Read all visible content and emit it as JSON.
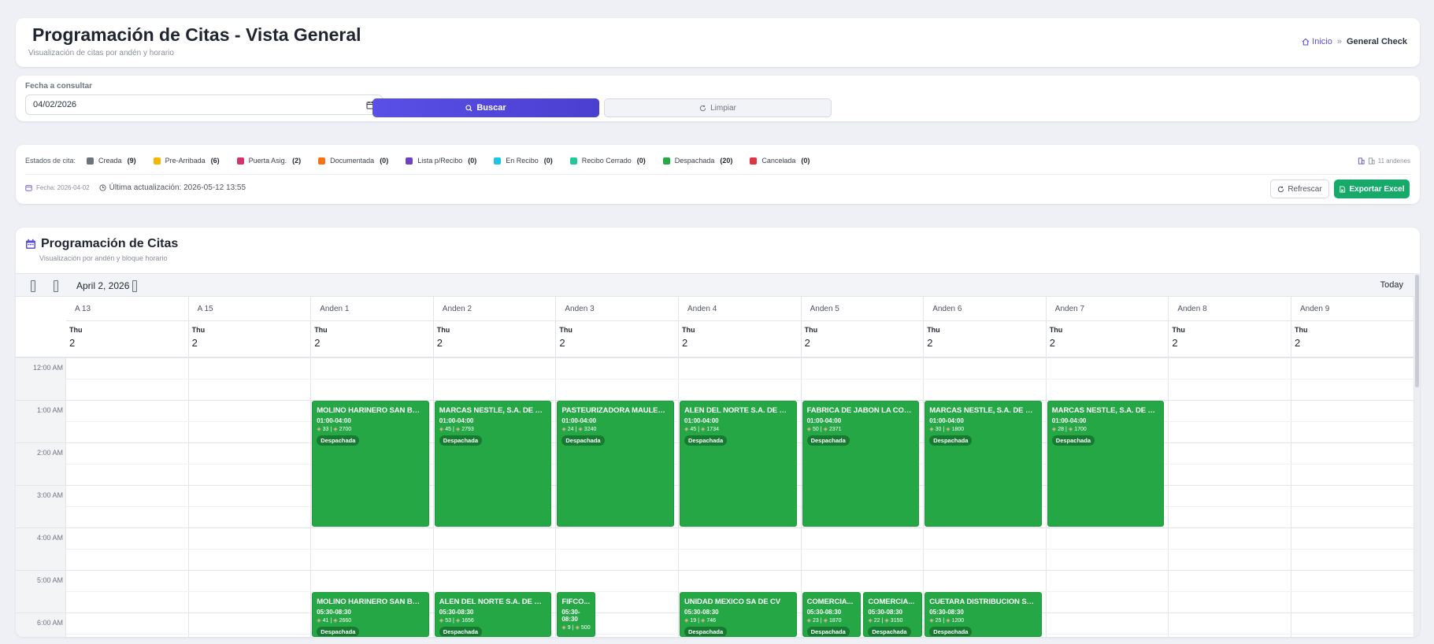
{
  "header": {
    "title": "Programación de Citas - Vista General",
    "subtitle": "Visualización de citas por andén y horario",
    "breadcrumb_home": "Inicio",
    "breadcrumb_current": "General Check"
  },
  "search": {
    "label": "Fecha a consultar",
    "date_value": "04/02/2026",
    "search_label": "Buscar",
    "clear_label": "Limpiar"
  },
  "status": {
    "label": "Estados de cita:",
    "legend": [
      {
        "label": "Creada",
        "count": "(9)",
        "color": "#6b7280"
      },
      {
        "label": "Pre-Arribada",
        "count": "(6)",
        "color": "#f5b700"
      },
      {
        "label": "Puerta Asig.",
        "count": "(2)",
        "color": "#d6336c"
      },
      {
        "label": "Documentada",
        "count": "(0)",
        "color": "#f97316"
      },
      {
        "label": "Lista p/Recibo",
        "count": "(0)",
        "color": "#6f42c1"
      },
      {
        "label": "En Recibo",
        "count": "(0)",
        "color": "#22c3e6"
      },
      {
        "label": "Recibo Cerrado",
        "count": "(0)",
        "color": "#20c997"
      },
      {
        "label": "Despachada",
        "count": "(20)",
        "color": "#28a745"
      },
      {
        "label": "Cancelada",
        "count": "(0)",
        "color": "#dc3545"
      }
    ],
    "andenes": "11 andenes",
    "fecha": "Fecha: 2026-04-02",
    "ultima": "Última actualización: 2026-05-12 13:55",
    "refresh_label": "Refrescar",
    "export_label": "Exportar Excel"
  },
  "calendar": {
    "title": "Programación de Citas",
    "subtitle": "Visualización por andén y bloque horario",
    "date_label": "April 2, 2026",
    "today_label": "Today",
    "day_name": "Thu",
    "day_number": "2",
    "resources": [
      "A 13",
      "A 15",
      "Anden 1",
      "Anden 2",
      "Anden 3",
      "Anden 4",
      "Anden 5",
      "Anden 6",
      "Anden 7",
      "Anden 8",
      "Anden 9"
    ],
    "time_labels": [
      "12:00 AM",
      "1:00 AM",
      "2:00 AM",
      "3:00 AM",
      "4:00 AM",
      "5:00 AM",
      "6:00 AM"
    ],
    "events": [
      {
        "col": 2,
        "start": 1.0,
        "end": 4.0,
        "name": "MOLINO HARINERO SAN BLA...",
        "time": "01:00-04:00",
        "m1": "33",
        "m2": "2700",
        "status": "Despachada"
      },
      {
        "col": 3,
        "start": 1.0,
        "end": 4.0,
        "name": "MARCAS NESTLE, S.A. DE C.V.",
        "time": "01:00-04:00",
        "m1": "45",
        "m2": "2793",
        "status": "Despachada"
      },
      {
        "col": 4,
        "start": 1.0,
        "end": 4.0,
        "name": "PASTEURIZADORA MAULEC ...",
        "time": "01:00-04:00",
        "m1": "24",
        "m2": "3240",
        "status": "Despachada"
      },
      {
        "col": 5,
        "start": 1.0,
        "end": 4.0,
        "name": "ALEN DEL NORTE S.A. DE C.V.",
        "time": "01:00-04:00",
        "m1": "45",
        "m2": "1734",
        "status": "Despachada"
      },
      {
        "col": 6,
        "start": 1.0,
        "end": 4.0,
        "name": "FABRICA DE JABON LA COR...",
        "time": "01:00-04:00",
        "m1": "50",
        "m2": "2371",
        "status": "Despachada"
      },
      {
        "col": 7,
        "start": 1.0,
        "end": 4.0,
        "name": "MARCAS NESTLE, S.A. DE C.V.",
        "time": "01:00-04:00",
        "m1": "30",
        "m2": "1800",
        "status": "Despachada"
      },
      {
        "col": 8,
        "start": 1.0,
        "end": 4.0,
        "name": "MARCAS NESTLE, S.A. DE C.V.",
        "time": "01:00-04:00",
        "m1": "28",
        "m2": "1700",
        "status": "Despachada"
      },
      {
        "col": 2,
        "start": 5.5,
        "end": 8.5,
        "name": "MOLINO HARINERO SAN BLA...",
        "time": "05:30-08:30",
        "m1": "41",
        "m2": "2660",
        "status": "Despachada"
      },
      {
        "col": 3,
        "start": 5.5,
        "end": 8.5,
        "name": "ALEN DEL NORTE S.A. DE C.V.",
        "time": "05:30-08:30",
        "m1": "53",
        "m2": "1656",
        "status": "Despachada"
      },
      {
        "col": 4,
        "start": 5.5,
        "end": 8.5,
        "name": "FIFCO...",
        "time": "05:30-08:30",
        "m1": "9",
        "m2": "500",
        "status": "Despachada",
        "split": 0.33,
        "slot": 0
      },
      {
        "col": 5,
        "start": 5.5,
        "end": 8.5,
        "name": "UNIDAD MEXICO SA DE CV",
        "time": "05:30-08:30",
        "m1": "19",
        "m2": "746",
        "status": "Despachada"
      },
      {
        "col": 6,
        "start": 5.5,
        "end": 8.5,
        "name": "COMERCIA...",
        "time": "05:30-08:30",
        "m1": "23",
        "m2": "1870",
        "status": "Despachada",
        "split": 0.5,
        "slot": 0
      },
      {
        "col": 6,
        "start": 5.5,
        "end": 8.5,
        "name": "COMERCIA...",
        "time": "05:30-08:30",
        "m1": "22",
        "m2": "3150",
        "status": "Despachada",
        "split": 0.5,
        "slot": 1
      },
      {
        "col": 7,
        "start": 5.5,
        "end": 8.5,
        "name": "CUETARA DISTRIBUCION SA ...",
        "time": "05:30-08:30",
        "m1": "25",
        "m2": "1200",
        "status": "Despachada"
      }
    ]
  }
}
